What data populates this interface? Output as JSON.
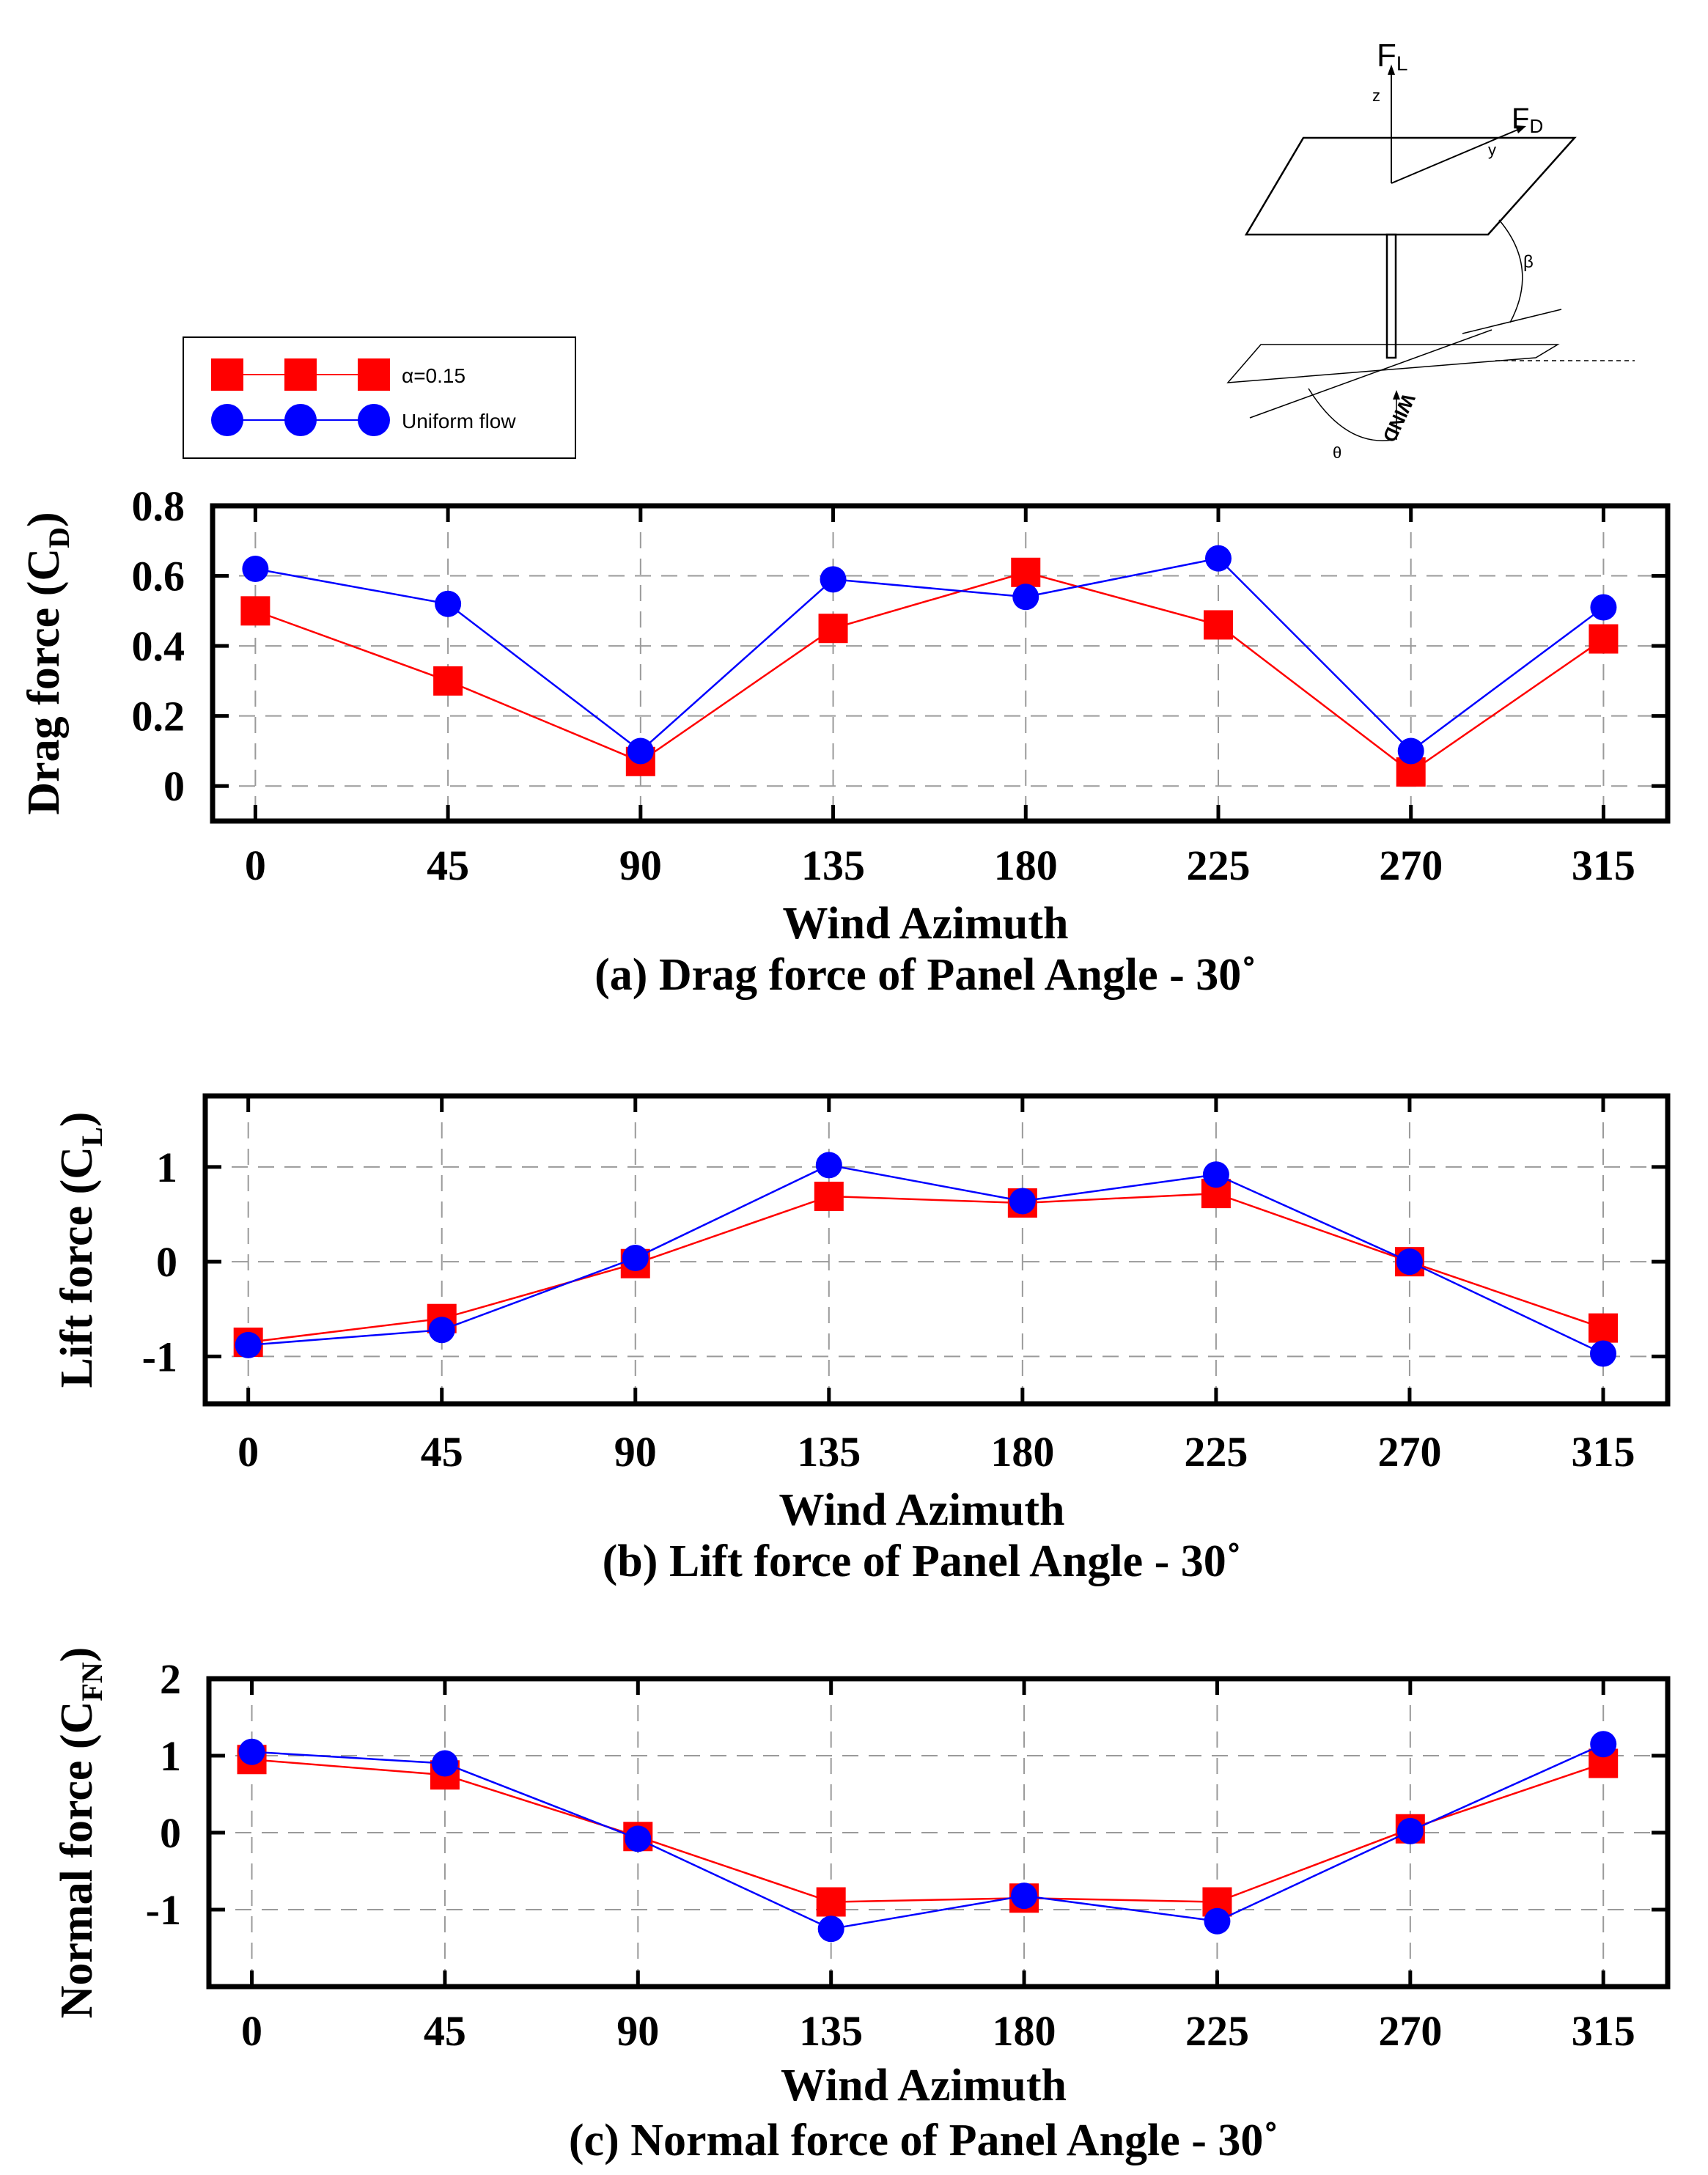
{
  "legend": {
    "items": [
      {
        "label": "α=0.15",
        "color": "#ff0000",
        "marker": "square"
      },
      {
        "label": "Uniform flow",
        "color": "#0000ff",
        "marker": "circle"
      }
    ]
  },
  "diagram": {
    "labels": {
      "lift_force": "F",
      "lift_sub": "L",
      "drag_force": "F",
      "drag_sub": "D",
      "z_axis": "z",
      "y_axis": "y",
      "beta": "β",
      "theta": "θ",
      "wind": "WIND"
    }
  },
  "chart_data": [
    {
      "type": "line",
      "title": "(a) Drag force of Panel Angle - 30˚",
      "xlabel": "Wind Azimuth",
      "ylabel": "Drag force (C",
      "ylabel_sub": "D",
      "ylabel_close": ")",
      "x": [
        0,
        45,
        90,
        135,
        180,
        225,
        270,
        315
      ],
      "xlim": [
        -10,
        330
      ],
      "ylim": [
        -0.1,
        0.8
      ],
      "yticks": [
        0,
        0.2,
        0.4,
        0.6,
        0.8
      ],
      "ytick_labels": [
        "0",
        "0.2",
        "0.4",
        "0.6",
        "0.8"
      ],
      "grid": true,
      "series": [
        {
          "name": "α=0.15",
          "color": "#ff0000",
          "marker": "square",
          "values": [
            0.5,
            0.3,
            0.07,
            0.45,
            0.61,
            0.46,
            0.04,
            0.42
          ]
        },
        {
          "name": "Uniform flow",
          "color": "#0000ff",
          "marker": "circle",
          "values": [
            0.62,
            0.52,
            0.1,
            0.59,
            0.54,
            0.65,
            0.1,
            0.51
          ]
        }
      ]
    },
    {
      "type": "line",
      "title": "(b) Lift force of Panel Angle - 30˚",
      "xlabel": "Wind Azimuth",
      "ylabel": "Lift force (C",
      "ylabel_sub": "L",
      "ylabel_close": ")",
      "x": [
        0,
        45,
        90,
        135,
        180,
        225,
        270,
        315
      ],
      "xlim": [
        -10,
        330
      ],
      "ylim": [
        -1.5,
        1.75
      ],
      "yticks": [
        -1,
        0,
        1
      ],
      "ytick_labels": [
        "-1",
        "0",
        "1"
      ],
      "grid": true,
      "series": [
        {
          "name": "α=0.15",
          "color": "#ff0000",
          "marker": "square",
          "values": [
            -0.85,
            -0.6,
            -0.02,
            0.69,
            0.62,
            0.72,
            0.0,
            -0.7
          ]
        },
        {
          "name": "Uniform flow",
          "color": "#0000ff",
          "marker": "circle",
          "values": [
            -0.88,
            -0.72,
            0.04,
            1.02,
            0.64,
            0.92,
            0.0,
            -0.97
          ]
        }
      ]
    },
    {
      "type": "line",
      "title": "(c) Normal force of Panel Angle - 30˚",
      "xlabel": "Wind Azimuth",
      "ylabel": "Normal force (C",
      "ylabel_sub": "FN",
      "ylabel_close": ")",
      "x": [
        0,
        45,
        90,
        135,
        180,
        225,
        270,
        315
      ],
      "xlim": [
        -10,
        330
      ],
      "ylim": [
        -2,
        2
      ],
      "yticks": [
        -1,
        0,
        1,
        2
      ],
      "ytick_labels": [
        "-1",
        "0",
        "1",
        "2"
      ],
      "grid": true,
      "series": [
        {
          "name": "α=0.15",
          "color": "#ff0000",
          "marker": "square",
          "values": [
            0.95,
            0.75,
            -0.05,
            -0.9,
            -0.85,
            -0.9,
            0.05,
            0.9
          ]
        },
        {
          "name": "Uniform flow",
          "color": "#0000ff",
          "marker": "circle",
          "values": [
            1.05,
            0.9,
            -0.08,
            -1.25,
            -0.82,
            -1.15,
            0.02,
            1.15
          ]
        }
      ]
    }
  ]
}
